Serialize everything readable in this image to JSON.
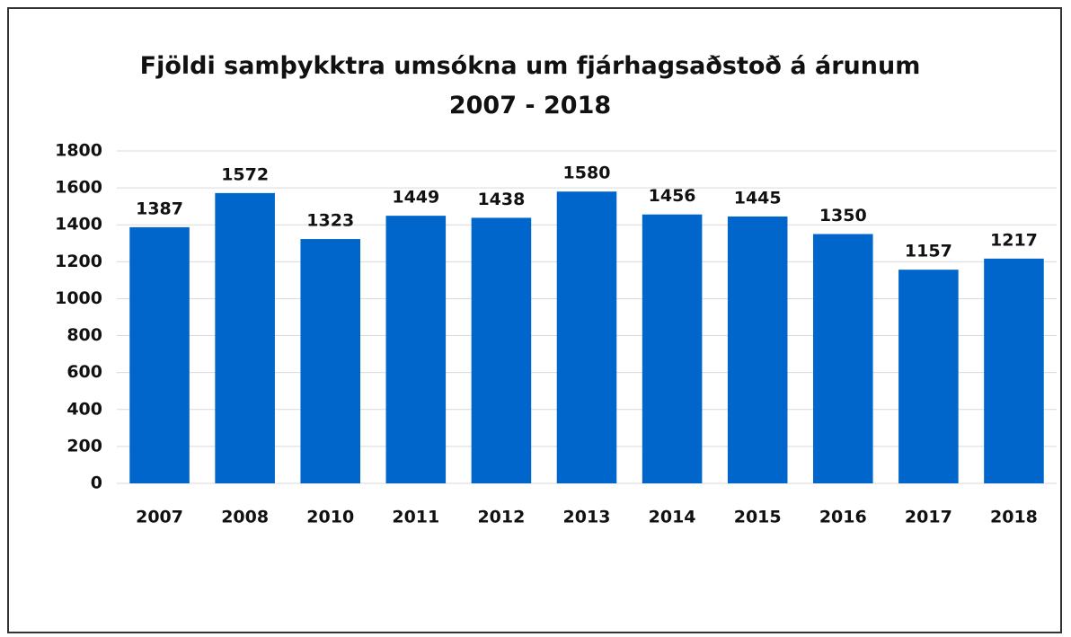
{
  "chart_data": {
    "type": "bar",
    "title": "Fjöldi samþykktra umsókna um fjárhagsaðstoð á árunum 2007 - 2018",
    "categories": [
      "2007",
      "2008",
      "2010",
      "2011",
      "2012",
      "2013",
      "2014",
      "2015",
      "2016",
      "2017",
      "2018"
    ],
    "values": [
      1387,
      1572,
      1323,
      1449,
      1438,
      1580,
      1456,
      1445,
      1350,
      1157,
      1217
    ],
    "color": "#0066cc",
    "ylim": [
      0,
      1800
    ],
    "yticks": [
      0,
      200,
      400,
      600,
      800,
      1000,
      1200,
      1400,
      1600,
      1800
    ],
    "grid": true
  }
}
